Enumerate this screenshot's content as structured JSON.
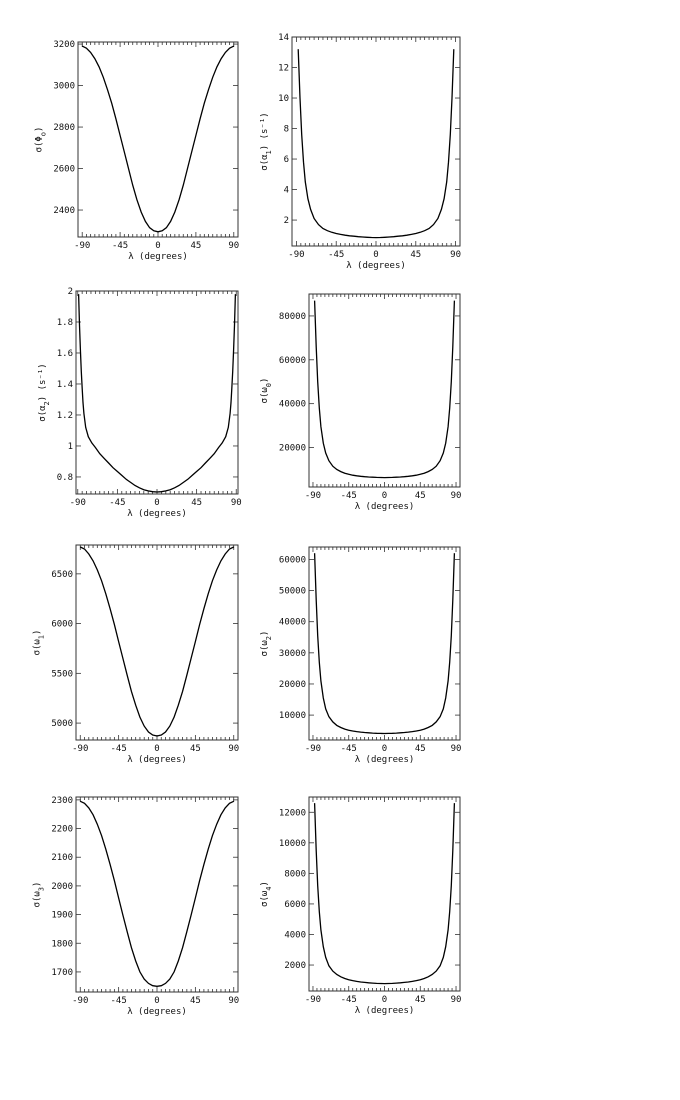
{
  "chart_data": [
    {
      "type": "line",
      "xlabel": "λ (degrees)",
      "ylabel_main": "σ(Φ",
      "ylabel_sub": "o",
      "ylabel_tail": ")",
      "xlim": [
        -95,
        95
      ],
      "ylim": [
        2270,
        3210
      ],
      "xticks": [
        "-90",
        "-45",
        "0",
        "45",
        "90"
      ],
      "yticks": [
        "2400",
        "2600",
        "2800",
        "3000",
        "3200"
      ],
      "series": [
        {
          "x": [
            -90,
            -85,
            -80,
            -75,
            -70,
            -65,
            -60,
            -55,
            -50,
            -45,
            -40,
            -35,
            -30,
            -25,
            -20,
            -15,
            -10,
            -5,
            0,
            5,
            10,
            15,
            20,
            25,
            30,
            35,
            40,
            45,
            50,
            55,
            60,
            65,
            70,
            75,
            80,
            85,
            90
          ],
          "y": [
            3190,
            3180,
            3160,
            3130,
            3090,
            3040,
            2980,
            2915,
            2840,
            2760,
            2680,
            2600,
            2520,
            2450,
            2390,
            2345,
            2315,
            2300,
            2295,
            2300,
            2315,
            2345,
            2390,
            2450,
            2520,
            2600,
            2680,
            2760,
            2840,
            2915,
            2980,
            3040,
            3090,
            3130,
            3160,
            3180,
            3190
          ]
        }
      ]
    },
    {
      "type": "line",
      "xlabel": "λ (degrees)",
      "ylabel_main": "σ(α",
      "ylabel_sub": "1",
      "ylabel_tail": ")  (s⁻¹)",
      "xlim": [
        -95,
        95
      ],
      "ylim": [
        0.3,
        14
      ],
      "xticks": [
        "-90",
        "-45",
        "0",
        "45",
        "90"
      ],
      "yticks": [
        "2",
        "4",
        "6",
        "8",
        "10",
        "12",
        "14"
      ],
      "series": [
        {
          "x": [
            -88,
            -86,
            -84,
            -82,
            -80,
            -77,
            -74,
            -70,
            -65,
            -60,
            -55,
            -50,
            -45,
            -40,
            -35,
            -30,
            -25,
            -20,
            -15,
            -10,
            -5,
            0,
            5,
            10,
            15,
            20,
            25,
            30,
            35,
            40,
            45,
            50,
            55,
            60,
            65,
            70,
            74,
            77,
            80,
            82,
            84,
            86,
            88
          ],
          "y": [
            13.2,
            10.0,
            7.6,
            5.8,
            4.5,
            3.4,
            2.7,
            2.1,
            1.7,
            1.45,
            1.3,
            1.2,
            1.12,
            1.06,
            1.01,
            0.97,
            0.94,
            0.91,
            0.89,
            0.87,
            0.86,
            0.85,
            0.86,
            0.87,
            0.89,
            0.91,
            0.94,
            0.97,
            1.01,
            1.06,
            1.12,
            1.2,
            1.3,
            1.45,
            1.7,
            2.1,
            2.7,
            3.4,
            4.5,
            5.8,
            7.6,
            10.0,
            13.2
          ]
        }
      ]
    },
    {
      "type": "line",
      "xlabel": "λ (degrees)",
      "ylabel_main": "σ(α",
      "ylabel_sub": "2",
      "ylabel_tail": ")  (s⁻¹)",
      "xlim": [
        -92,
        92
      ],
      "ylim": [
        0.69,
        2.0
      ],
      "xticks": [
        "-90",
        "-45",
        "0",
        "45",
        "90"
      ],
      "yticks": [
        "0.8",
        "1",
        "1.2",
        "1.4",
        "1.6",
        "1.8",
        "2"
      ],
      "series": [
        {
          "x": [
            -89,
            -88,
            -87,
            -86,
            -85,
            -84,
            -83,
            -81,
            -78,
            -74,
            -70,
            -65,
            -60,
            -55,
            -50,
            -45,
            -40,
            -35,
            -30,
            -25,
            -20,
            -15,
            -10,
            -5,
            0,
            5,
            10,
            15,
            20,
            25,
            30,
            35,
            40,
            45,
            50,
            55,
            60,
            65,
            70,
            74,
            78,
            81,
            83,
            84,
            85,
            86,
            87,
            88,
            89
          ],
          "y": [
            1.98,
            1.78,
            1.62,
            1.48,
            1.37,
            1.28,
            1.21,
            1.12,
            1.06,
            1.02,
            0.99,
            0.95,
            0.92,
            0.89,
            0.86,
            0.835,
            0.81,
            0.785,
            0.765,
            0.745,
            0.73,
            0.718,
            0.71,
            0.705,
            0.703,
            0.705,
            0.71,
            0.718,
            0.73,
            0.745,
            0.765,
            0.785,
            0.81,
            0.835,
            0.86,
            0.89,
            0.92,
            0.95,
            0.99,
            1.02,
            1.06,
            1.12,
            1.21,
            1.28,
            1.37,
            1.48,
            1.62,
            1.78,
            1.98
          ]
        }
      ]
    },
    {
      "type": "line",
      "xlabel": "λ (degrees)",
      "ylabel_main": "σ(ω",
      "ylabel_sub": "0",
      "ylabel_tail": ")",
      "xlim": [
        -95,
        95
      ],
      "ylim": [
        2000,
        90000
      ],
      "xticks": [
        "-90",
        "-45",
        "0",
        "45",
        "90"
      ],
      "yticks": [
        "20000",
        "40000",
        "60000",
        "80000"
      ],
      "series": [
        {
          "x": [
            -88,
            -86,
            -84,
            -82,
            -80,
            -77,
            -74,
            -70,
            -65,
            -60,
            -55,
            -50,
            -45,
            -40,
            -35,
            -30,
            -25,
            -20,
            -15,
            -10,
            -5,
            0,
            5,
            10,
            15,
            20,
            25,
            30,
            35,
            40,
            45,
            50,
            55,
            60,
            65,
            70,
            74,
            77,
            80,
            82,
            84,
            86,
            88
          ],
          "y": [
            87000,
            66000,
            50000,
            38000,
            29500,
            22000,
            17500,
            14000,
            11500,
            10000,
            9000,
            8300,
            7800,
            7400,
            7100,
            6900,
            6700,
            6550,
            6450,
            6380,
            6330,
            6300,
            6330,
            6380,
            6450,
            6550,
            6700,
            6900,
            7100,
            7400,
            7800,
            8300,
            9000,
            10000,
            11500,
            14000,
            17500,
            22000,
            29500,
            38000,
            50000,
            66000,
            87000
          ]
        }
      ]
    },
    {
      "type": "line",
      "xlabel": "λ (degrees)",
      "ylabel_main": "σ(ω",
      "ylabel_sub": "1",
      "ylabel_tail": ")",
      "xlim": [
        -95,
        95
      ],
      "ylim": [
        4830,
        6790
      ],
      "xticks": [
        "-90",
        "-45",
        "0",
        "45",
        "90"
      ],
      "yticks": [
        "5000",
        "5500",
        "6000",
        "6500"
      ],
      "series": [
        {
          "x": [
            -90,
            -85,
            -80,
            -75,
            -70,
            -65,
            -60,
            -55,
            -50,
            -45,
            -40,
            -35,
            -30,
            -25,
            -20,
            -15,
            -10,
            -5,
            0,
            5,
            10,
            15,
            20,
            25,
            30,
            35,
            40,
            45,
            50,
            55,
            60,
            65,
            70,
            75,
            80,
            85,
            90
          ],
          "y": [
            6770,
            6750,
            6700,
            6630,
            6540,
            6430,
            6300,
            6150,
            5990,
            5820,
            5650,
            5480,
            5320,
            5180,
            5060,
            4970,
            4910,
            4880,
            4870,
            4880,
            4910,
            4970,
            5060,
            5180,
            5320,
            5480,
            5650,
            5820,
            5990,
            6150,
            6300,
            6430,
            6540,
            6630,
            6700,
            6750,
            6770
          ]
        }
      ]
    },
    {
      "type": "line",
      "xlabel": "λ (degrees)",
      "ylabel_main": "σ(ω",
      "ylabel_sub": "2",
      "ylabel_tail": ")",
      "xlim": [
        -95,
        95
      ],
      "ylim": [
        2000,
        64000
      ],
      "xticks": [
        "-90",
        "-45",
        "0",
        "45",
        "90"
      ],
      "yticks": [
        "10000",
        "20000",
        "30000",
        "40000",
        "50000",
        "60000"
      ],
      "series": [
        {
          "x": [
            -88,
            -86,
            -84,
            -82,
            -80,
            -77,
            -74,
            -70,
            -65,
            -60,
            -55,
            -50,
            -45,
            -40,
            -35,
            -30,
            -25,
            -20,
            -15,
            -10,
            -5,
            0,
            5,
            10,
            15,
            20,
            25,
            30,
            35,
            40,
            45,
            50,
            55,
            60,
            65,
            70,
            74,
            77,
            80,
            82,
            84,
            86,
            88
          ],
          "y": [
            62000,
            47000,
            35500,
            27000,
            21000,
            15500,
            12000,
            9500,
            7800,
            6700,
            6000,
            5500,
            5150,
            4900,
            4700,
            4550,
            4400,
            4300,
            4220,
            4160,
            4120,
            4100,
            4120,
            4160,
            4220,
            4300,
            4400,
            4550,
            4700,
            4900,
            5150,
            5500,
            6000,
            6700,
            7800,
            9500,
            12000,
            15500,
            21000,
            27000,
            35500,
            47000,
            62000
          ]
        }
      ]
    },
    {
      "type": "line",
      "xlabel": "λ (degrees)",
      "ylabel_main": "σ(ω",
      "ylabel_sub": "3",
      "ylabel_tail": ")",
      "xlim": [
        -95,
        95
      ],
      "ylim": [
        1630,
        2310
      ],
      "xticks": [
        "-90",
        "-45",
        "0",
        "45",
        "90"
      ],
      "yticks": [
        "1700",
        "1800",
        "1900",
        "2000",
        "2100",
        "2200",
        "2300"
      ],
      "series": [
        {
          "x": [
            -90,
            -85,
            -80,
            -75,
            -70,
            -65,
            -60,
            -55,
            -50,
            -45,
            -40,
            -35,
            -30,
            -25,
            -20,
            -15,
            -10,
            -5,
            0,
            5,
            10,
            15,
            20,
            25,
            30,
            35,
            40,
            45,
            50,
            55,
            60,
            65,
            70,
            75,
            80,
            85,
            90
          ],
          "y": [
            2295,
            2288,
            2272,
            2248,
            2215,
            2175,
            2128,
            2075,
            2018,
            1958,
            1898,
            1840,
            1785,
            1738,
            1700,
            1675,
            1660,
            1652,
            1650,
            1652,
            1660,
            1675,
            1700,
            1738,
            1785,
            1840,
            1898,
            1958,
            2018,
            2075,
            2128,
            2175,
            2215,
            2248,
            2272,
            2288,
            2295
          ]
        }
      ]
    },
    {
      "type": "line",
      "xlabel": "λ (degrees)",
      "ylabel_main": "σ(ω",
      "ylabel_sub": "4",
      "ylabel_tail": ")",
      "xlim": [
        -95,
        95
      ],
      "ylim": [
        300,
        13000
      ],
      "xticks": [
        "-90",
        "-45",
        "0",
        "45",
        "90"
      ],
      "yticks": [
        "2000",
        "4000",
        "6000",
        "8000",
        "10000",
        "12000"
      ],
      "series": [
        {
          "x": [
            -88,
            -86,
            -84,
            -82,
            -80,
            -77,
            -74,
            -70,
            -65,
            -60,
            -55,
            -50,
            -45,
            -40,
            -35,
            -30,
            -25,
            -20,
            -15,
            -10,
            -5,
            0,
            5,
            10,
            15,
            20,
            25,
            30,
            35,
            40,
            45,
            50,
            55,
            60,
            65,
            70,
            74,
            77,
            80,
            82,
            84,
            86,
            88
          ],
          "y": [
            12600,
            9500,
            7200,
            5500,
            4300,
            3200,
            2500,
            1950,
            1600,
            1380,
            1230,
            1120,
            1040,
            980,
            930,
            890,
            860,
            835,
            815,
            800,
            790,
            785,
            790,
            800,
            815,
            835,
            860,
            890,
            930,
            980,
            1040,
            1120,
            1230,
            1380,
            1600,
            1950,
            2500,
            3200,
            4300,
            5500,
            7200,
            9500,
            12600
          ]
        }
      ]
    }
  ]
}
